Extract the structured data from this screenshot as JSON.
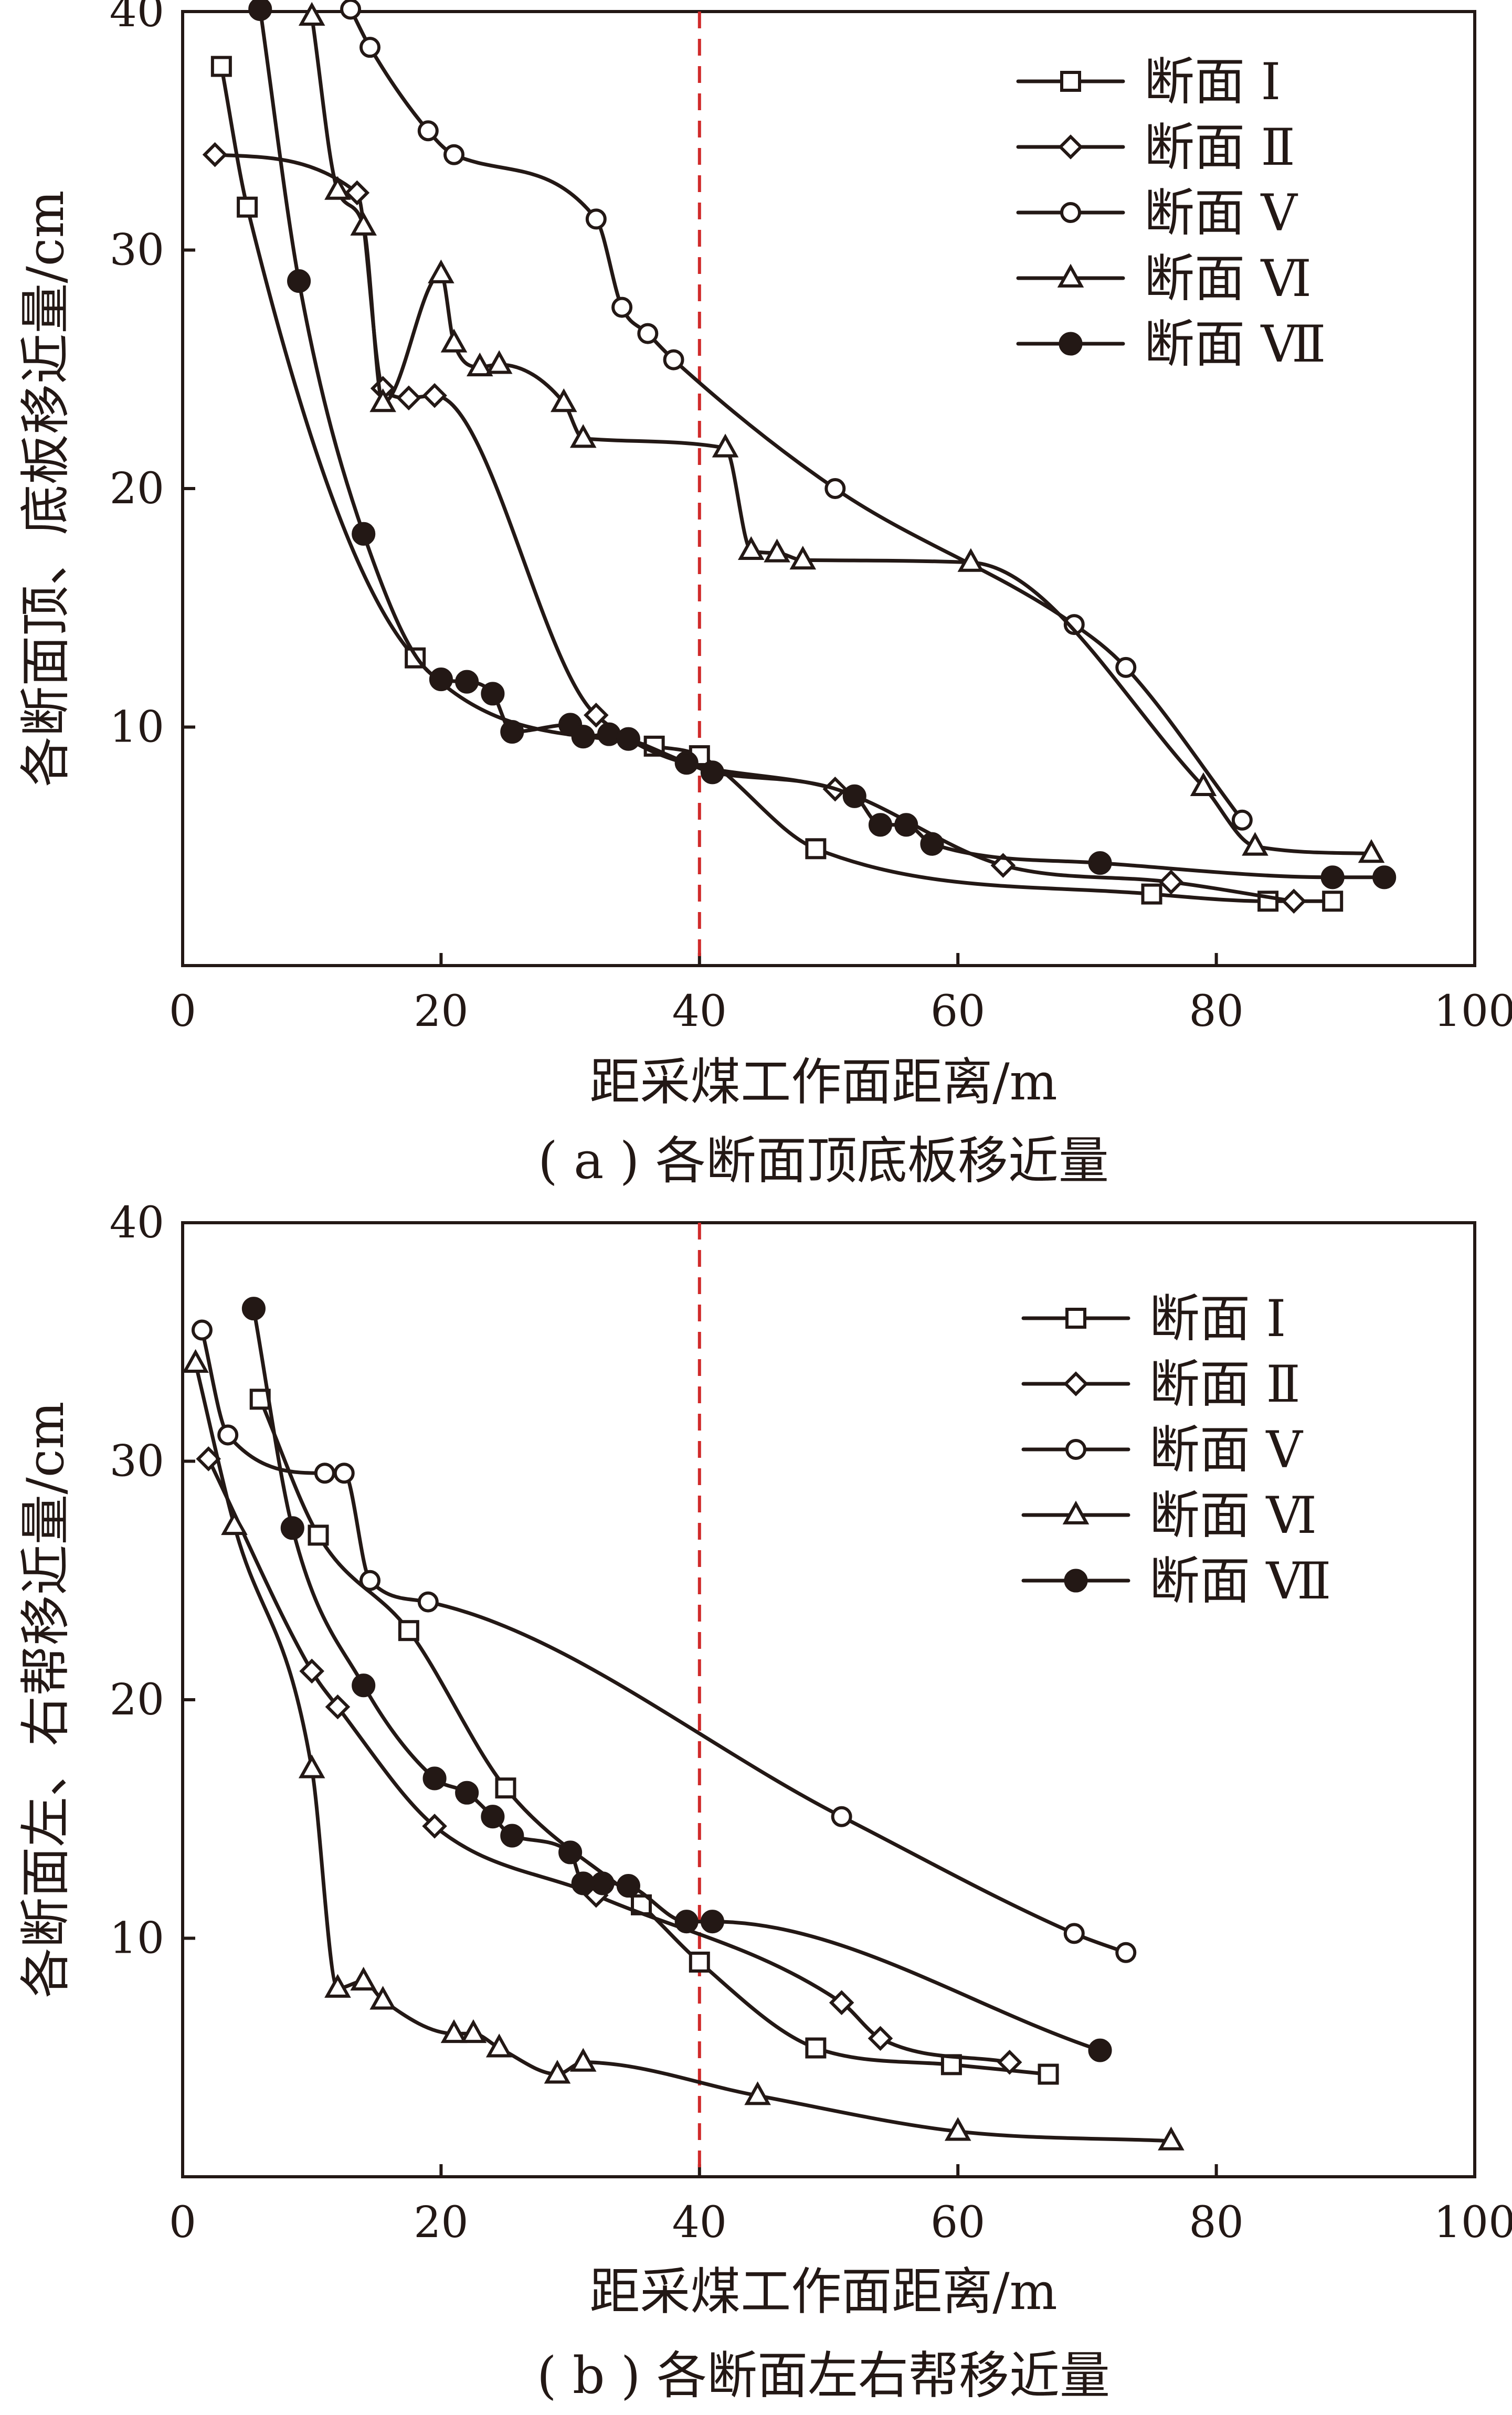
{
  "colors": {
    "ink": "#231815",
    "reference_line": "#d02a2a"
  },
  "chart_data": [
    {
      "id": "a",
      "type": "line",
      "caption": "( a ) 各断面顶底板移近量",
      "xlabel": "距采煤工作面距离/m",
      "ylabel": "各断面顶、底板移近量/cm",
      "xlim": [
        0,
        100
      ],
      "ylim": [
        0,
        40
      ],
      "xticks": [
        0,
        20,
        40,
        60,
        80,
        100
      ],
      "yticks": [
        10,
        20,
        30,
        40
      ],
      "grid": false,
      "legend_position": "top-right",
      "reference_line_x": 40,
      "series": [
        {
          "name": "断面 Ⅰ",
          "marker": "square",
          "filled": false,
          "x": [
            3,
            5,
            18,
            36.5,
            40,
            49,
            75,
            84,
            89
          ],
          "y": [
            37.7,
            31.8,
            12.9,
            9.2,
            8.8,
            4.9,
            3.0,
            2.7,
            2.7
          ]
        },
        {
          "name": "断面 Ⅱ",
          "marker": "diamond",
          "filled": false,
          "x": [
            2.5,
            13.5,
            15.5,
            17.5,
            19.5,
            32,
            50.5,
            63.5,
            76.5,
            86
          ],
          "y": [
            34.0,
            32.4,
            24.2,
            23.8,
            23.9,
            10.5,
            7.4,
            4.2,
            3.5,
            2.7
          ]
        },
        {
          "name": "断面 Ⅴ",
          "marker": "circle",
          "filled": false,
          "x": [
            13,
            14.5,
            19,
            21,
            32,
            34,
            36,
            38,
            50.5,
            69,
            73,
            82
          ],
          "y": [
            40.1,
            38.5,
            35.0,
            34.0,
            31.3,
            27.6,
            26.5,
            25.4,
            20.0,
            14.3,
            12.5,
            6.1
          ]
        },
        {
          "name": "断面 Ⅵ",
          "marker": "triangle",
          "filled": false,
          "x": [
            10,
            12,
            14,
            15.5,
            20,
            21,
            23,
            24.5,
            29.5,
            31,
            42,
            44,
            46,
            48,
            61,
            79,
            83,
            92
          ],
          "y": [
            39.8,
            32.5,
            31.0,
            23.6,
            29.0,
            26.1,
            25.1,
            25.2,
            23.6,
            22.1,
            21.7,
            17.4,
            17.3,
            17.0,
            16.9,
            7.5,
            5.0,
            4.7
          ]
        },
        {
          "name": "断面 Ⅶ",
          "marker": "circle",
          "filled": true,
          "x": [
            6,
            9,
            14,
            20,
            22,
            24,
            25.5,
            30,
            31,
            33,
            34.5,
            39,
            41,
            52,
            54,
            56,
            58,
            71,
            89,
            93
          ],
          "y": [
            40.1,
            28.7,
            18.1,
            12.0,
            11.9,
            11.4,
            9.8,
            10.1,
            9.6,
            9.7,
            9.5,
            8.5,
            8.1,
            7.1,
            5.9,
            5.9,
            5.1,
            4.3,
            3.7,
            3.7
          ]
        }
      ]
    },
    {
      "id": "b",
      "type": "line",
      "caption": "( b ) 各断面左右帮移近量",
      "xlabel": "距采煤工作面距离/m",
      "ylabel": "各断面左、右帮移近量/cm",
      "xlim": [
        0,
        100
      ],
      "ylim": [
        0,
        40
      ],
      "xticks": [
        0,
        20,
        40,
        60,
        80,
        100
      ],
      "yticks": [
        10,
        20,
        30,
        40
      ],
      "grid": false,
      "legend_position": "top-right",
      "reference_line_x": 40,
      "series": [
        {
          "name": "断面 Ⅰ",
          "marker": "square",
          "filled": false,
          "x": [
            6,
            10.5,
            17.5,
            25,
            35.5,
            40,
            49,
            59.5,
            67
          ],
          "y": [
            32.6,
            26.9,
            22.9,
            16.3,
            11.4,
            9.0,
            5.4,
            4.7,
            4.3
          ]
        },
        {
          "name": "断面 Ⅱ",
          "marker": "diamond",
          "filled": false,
          "x": [
            2,
            10,
            12,
            19.5,
            32,
            51,
            54,
            64
          ],
          "y": [
            30.1,
            21.2,
            19.7,
            14.7,
            11.8,
            7.3,
            5.8,
            4.8
          ]
        },
        {
          "name": "断面 Ⅴ",
          "marker": "circle",
          "filled": false,
          "x": [
            1.5,
            3.5,
            11,
            12.5,
            14.5,
            19,
            51,
            69,
            73
          ],
          "y": [
            35.5,
            31.1,
            29.5,
            29.5,
            25.0,
            24.1,
            15.1,
            10.2,
            9.4
          ]
        },
        {
          "name": "断面 Ⅵ",
          "marker": "triangle",
          "filled": false,
          "x": [
            1,
            4,
            10,
            12,
            14,
            15.5,
            21,
            22.5,
            24.5,
            29,
            31,
            44.5,
            60,
            76.5
          ],
          "y": [
            34.1,
            27.3,
            17.1,
            7.9,
            8.2,
            7.4,
            6.0,
            6.0,
            5.4,
            4.3,
            4.8,
            3.4,
            1.9,
            1.5
          ]
        },
        {
          "name": "断面 Ⅶ",
          "marker": "circle",
          "filled": true,
          "x": [
            5.5,
            8.5,
            14,
            19.5,
            22,
            24,
            25.5,
            30,
            31,
            32.5,
            34.5,
            39,
            41,
            71
          ],
          "y": [
            36.4,
            27.2,
            20.6,
            16.7,
            16.1,
            15.1,
            14.3,
            13.6,
            12.3,
            12.3,
            12.2,
            10.7,
            10.7,
            5.3
          ]
        }
      ]
    }
  ]
}
